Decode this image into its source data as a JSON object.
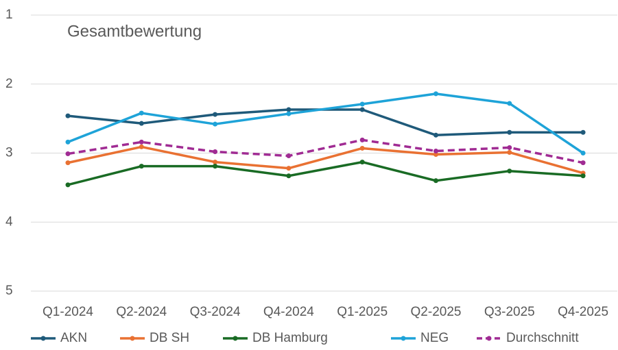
{
  "chart_data": {
    "type": "line",
    "title": "Gesamtbewertung",
    "categories": [
      "Q1-2024",
      "Q2-2024",
      "Q3-2024",
      "Q4-2024",
      "Q1-2025",
      "Q2-2025",
      "Q3-2025",
      "Q4-2025"
    ],
    "series": [
      {
        "name": "AKN",
        "color": "#1f5a7a",
        "style": "solid",
        "values": [
          2.46,
          2.57,
          2.44,
          2.37,
          2.37,
          2.74,
          2.7,
          2.7
        ]
      },
      {
        "name": "DB SH",
        "color": "#e97132",
        "style": "solid",
        "values": [
          3.14,
          2.91,
          3.13,
          3.22,
          2.93,
          3.02,
          2.99,
          3.29
        ]
      },
      {
        "name": "DB Hamburg",
        "color": "#196b24",
        "style": "solid",
        "values": [
          3.46,
          3.19,
          3.19,
          3.33,
          3.13,
          3.4,
          3.26,
          3.33
        ]
      },
      {
        "name": "NEG",
        "color": "#1ea3d8",
        "style": "solid",
        "values": [
          2.84,
          2.42,
          2.58,
          2.43,
          2.29,
          2.14,
          2.28,
          3.0
        ]
      },
      {
        "name": "Durchschnitt",
        "color": "#a02b93",
        "style": "dashed",
        "values": [
          3.01,
          2.84,
          2.98,
          3.04,
          2.81,
          2.97,
          2.92,
          3.14
        ]
      }
    ],
    "ylim": [
      1,
      5
    ],
    "yticks": [
      1,
      2,
      3,
      4,
      5
    ],
    "invert_y": true,
    "grid": true,
    "legend": "bottom"
  }
}
